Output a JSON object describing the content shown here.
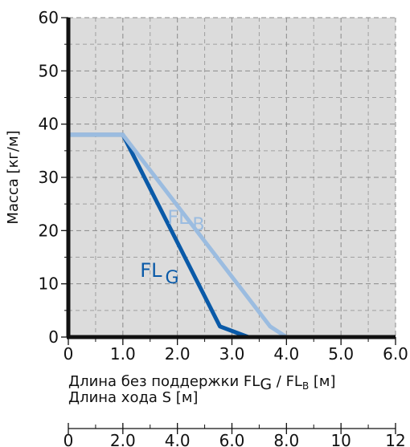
{
  "chart_data": {
    "type": "line",
    "ylabel": "Масса [кг/м]",
    "xlabel_line1_main": "Длина без поддержки FL",
    "xlabel_line1_sub1": "G",
    "xlabel_line1_mid": " / FL",
    "xlabel_line1_sub2": "B",
    "xlabel_line1_unit": " [м]",
    "xlabel_line2": "Длина хода S   [м]",
    "xlim": [
      0,
      6
    ],
    "ylim": [
      0,
      60
    ],
    "x_ticks": [
      0,
      1,
      2,
      3,
      4,
      5,
      6
    ],
    "x_tick_labels": [
      "0",
      "1.0",
      "2.0",
      "3.0",
      "4.0",
      "5.0",
      "6.0"
    ],
    "y_ticks": [
      0,
      10,
      20,
      30,
      40,
      50,
      60
    ],
    "y_tick_labels": [
      "0",
      "10",
      "20",
      "30",
      "40",
      "50",
      "60"
    ],
    "secondary_x_ticks": [
      0,
      2,
      4,
      6,
      8,
      10,
      12
    ],
    "secondary_x_tick_labels": [
      "0",
      "2.0",
      "4.0",
      "6.0",
      "8.0",
      "10",
      "12"
    ],
    "grid": true,
    "series": [
      {
        "name": "FL",
        "name_sub": "G",
        "color": "#0a5aa8",
        "x": [
          0,
          1.0,
          2.78,
          3.3
        ],
        "y": [
          38,
          38,
          2,
          0
        ]
      },
      {
        "name": "FL",
        "name_sub": "B",
        "color": "#9bbce0",
        "x": [
          0,
          1.0,
          3.7,
          4.0
        ],
        "y": [
          38,
          38,
          2,
          0
        ]
      }
    ]
  }
}
